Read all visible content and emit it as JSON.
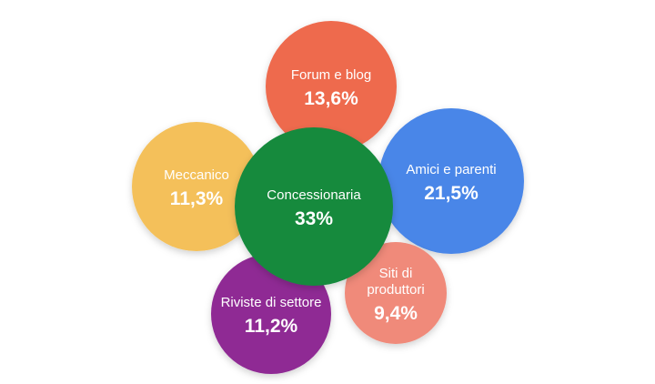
{
  "chart_data": {
    "type": "bubble",
    "title": "",
    "series": [
      {
        "label": [
          "Concessionaria"
        ],
        "value_label": "33%",
        "value": 33,
        "color": "#128a3e"
      },
      {
        "label": [
          "Amici e parenti"
        ],
        "value_label": "21,5%",
        "value": 21.5,
        "color": "#4a86e8"
      },
      {
        "label": [
          "Forum e blog"
        ],
        "value_label": "13,6%",
        "value": 13.6,
        "color": "#ee6a4e"
      },
      {
        "label": [
          "Meccanico"
        ],
        "value_label": "11,3%",
        "value": 11.3,
        "color": "#f4c05a"
      },
      {
        "label": [
          "Riviste di settore"
        ],
        "value_label": "11,2%",
        "value": 11.2,
        "color": "#8f2a94"
      },
      {
        "label": [
          "Siti di",
          "produttori"
        ],
        "value_label": "9,4%",
        "value": 9.4,
        "color": "#f08a7a"
      }
    ]
  }
}
